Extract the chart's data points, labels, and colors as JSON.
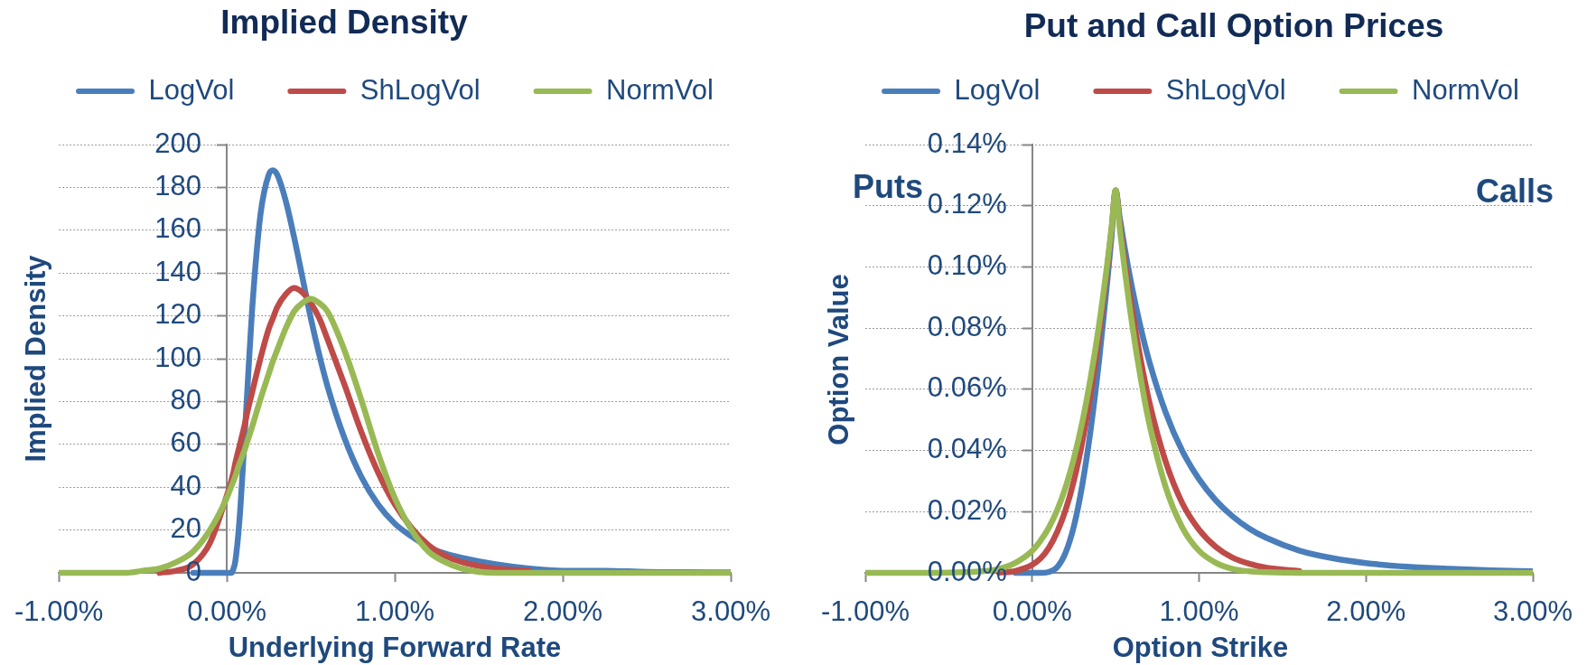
{
  "chart_data": [
    {
      "type": "line",
      "title": "Implied Density",
      "xlabel": "Underlying Forward Rate",
      "ylabel": "Implied Density",
      "x": [
        -1,
        -0.8,
        -0.6,
        -0.5,
        -0.4,
        -0.3,
        -0.2,
        -0.1,
        0,
        0.02,
        0.03,
        0.04,
        0.05,
        0.075,
        0.1,
        0.125,
        0.15,
        0.2,
        0.25,
        0.275,
        0.3,
        0.35,
        0.4,
        0.45,
        0.5,
        0.55,
        0.6,
        0.7,
        0.8,
        0.9,
        1,
        1.1,
        1.2,
        1.3,
        1.4,
        1.6,
        1.8,
        2,
        2.25,
        2.5,
        2.75,
        3
      ],
      "series": [
        {
          "name": "LogVol",
          "color": "#4a7ebb",
          "values": [
            null,
            null,
            null,
            null,
            null,
            null,
            0,
            0,
            0,
            0,
            0,
            2,
            5,
            24,
            55,
            89,
            122,
            167,
            186,
            188,
            186,
            174,
            157,
            138,
            119,
            102,
            87,
            63,
            45,
            32,
            23,
            17,
            12,
            9,
            7,
            4,
            2,
            1,
            1,
            0.4,
            0.3,
            0.2
          ]
        },
        {
          "name": "ShLogVol",
          "color": "#be4b48",
          "values": [
            null,
            null,
            null,
            null,
            0,
            1,
            4,
            14,
            36,
            41,
            44,
            47,
            51,
            59,
            67,
            76,
            84,
            100,
            114,
            119,
            124,
            130,
            133,
            131,
            126,
            119,
            109,
            88,
            66,
            47,
            32,
            21,
            13,
            8,
            5,
            2,
            1,
            null,
            null,
            null,
            null,
            null
          ]
        },
        {
          "name": "NormVol",
          "color": "#98b954",
          "values": [
            0,
            0,
            0,
            1,
            2,
            5,
            10,
            20,
            35,
            39,
            41,
            43,
            45,
            51,
            56,
            62,
            68,
            81,
            93,
            99,
            104,
            114,
            122,
            126,
            128,
            126,
            122,
            104,
            81,
            56,
            35,
            20,
            10,
            5,
            2,
            0,
            0,
            0,
            0,
            0,
            0,
            0
          ]
        }
      ],
      "xlim": [
        -1,
        3
      ],
      "xticks": [
        {
          "value": -1,
          "label": "-1.00%"
        },
        {
          "value": 0,
          "label": "0.00%"
        },
        {
          "value": 1,
          "label": "1.00%"
        },
        {
          "value": 2,
          "label": "2.00%"
        },
        {
          "value": 3,
          "label": "3.00%"
        }
      ],
      "ylim": [
        0,
        200
      ],
      "yticks": [
        0,
        20,
        40,
        60,
        80,
        100,
        120,
        140,
        160,
        180,
        200
      ],
      "grid": "y",
      "legend": "top",
      "marker": "none",
      "line_style": "solid"
    },
    {
      "type": "line",
      "title": "Put and Call Option Prices",
      "xlabel": "Option Strike",
      "ylabel": "Option Value",
      "annotations": [
        "Puts",
        "Calls"
      ],
      "x": [
        -1,
        -0.6,
        -0.4,
        -0.3,
        -0.2,
        -0.1,
        0,
        0.05,
        0.1,
        0.15,
        0.2,
        0.25,
        0.3,
        0.35,
        0.4,
        0.45,
        0.475,
        0.5,
        0.525,
        0.55,
        0.6,
        0.65,
        0.7,
        0.8,
        0.9,
        1,
        1.1,
        1.2,
        1.3,
        1.4,
        1.6,
        1.8,
        2,
        2.25,
        2.5,
        2.75,
        3
      ],
      "series": [
        {
          "name": "LogVol",
          "color": "#4a7ebb",
          "values": [
            null,
            null,
            null,
            null,
            null,
            0,
            0,
            0,
            0.0003,
            0.0019,
            0.0066,
            0.0153,
            0.0287,
            0.0467,
            0.069,
            0.0953,
            0.1097,
            0.125,
            0.1159,
            0.1076,
            0.0928,
            0.0802,
            0.0694,
            0.0524,
            0.0398,
            0.0306,
            0.0237,
            0.0185,
            0.0145,
            0.0115,
            0.0073,
            0.0048,
            0.0032,
            0.002,
            0.0013,
            0.0008,
            0.0005
          ]
        },
        {
          "name": "ShLogVol",
          "color": "#be4b48",
          "values": [
            null,
            null,
            null,
            null,
            0.0001,
            0.0006,
            0.0026,
            0.0047,
            0.0082,
            0.0134,
            0.0205,
            0.0302,
            0.0428,
            0.0585,
            0.0774,
            0.0996,
            0.1119,
            0.125,
            0.114,
            0.1036,
            0.0853,
            0.0697,
            0.0563,
            0.0363,
            0.0227,
            0.0141,
            0.0085,
            0.005,
            0.003,
            0.0017,
            0.0006,
            null,
            null,
            null,
            null,
            null,
            null
          ]
        },
        {
          "name": "NormVol",
          "color": "#98b954",
          "values": [
            0,
            0,
            0.0002,
            0.0005,
            0.0013,
            0.0033,
            0.0072,
            0.0105,
            0.0148,
            0.0205,
            0.028,
            0.0374,
            0.0492,
            0.0637,
            0.0808,
            0.1011,
            0.1124,
            0.125,
            0.1124,
            0.1011,
            0.0808,
            0.0637,
            0.0492,
            0.028,
            0.0148,
            0.0072,
            0.0033,
            0.0013,
            0.0005,
            0.0002,
            0,
            0,
            0,
            0,
            0,
            0,
            0
          ]
        }
      ],
      "xlim": [
        -1,
        3
      ],
      "xticks": [
        {
          "value": -1,
          "label": "-1.00%"
        },
        {
          "value": 0,
          "label": "0.00%"
        },
        {
          "value": 1,
          "label": "1.00%"
        },
        {
          "value": 2,
          "label": "2.00%"
        },
        {
          "value": 3,
          "label": "3.00%"
        }
      ],
      "ylim": [
        0,
        0.14
      ],
      "yticks": [
        {
          "value": 0,
          "label": "0.00%"
        },
        {
          "value": 0.02,
          "label": "0.02%"
        },
        {
          "value": 0.04,
          "label": "0.04%"
        },
        {
          "value": 0.06,
          "label": "0.06%"
        },
        {
          "value": 0.08,
          "label": "0.08%"
        },
        {
          "value": 0.1,
          "label": "0.10%"
        },
        {
          "value": 0.12,
          "label": "0.12%"
        },
        {
          "value": 0.14,
          "label": "0.14%"
        }
      ],
      "grid": "y",
      "legend": "top",
      "marker": "none",
      "line_style": "solid"
    }
  ]
}
